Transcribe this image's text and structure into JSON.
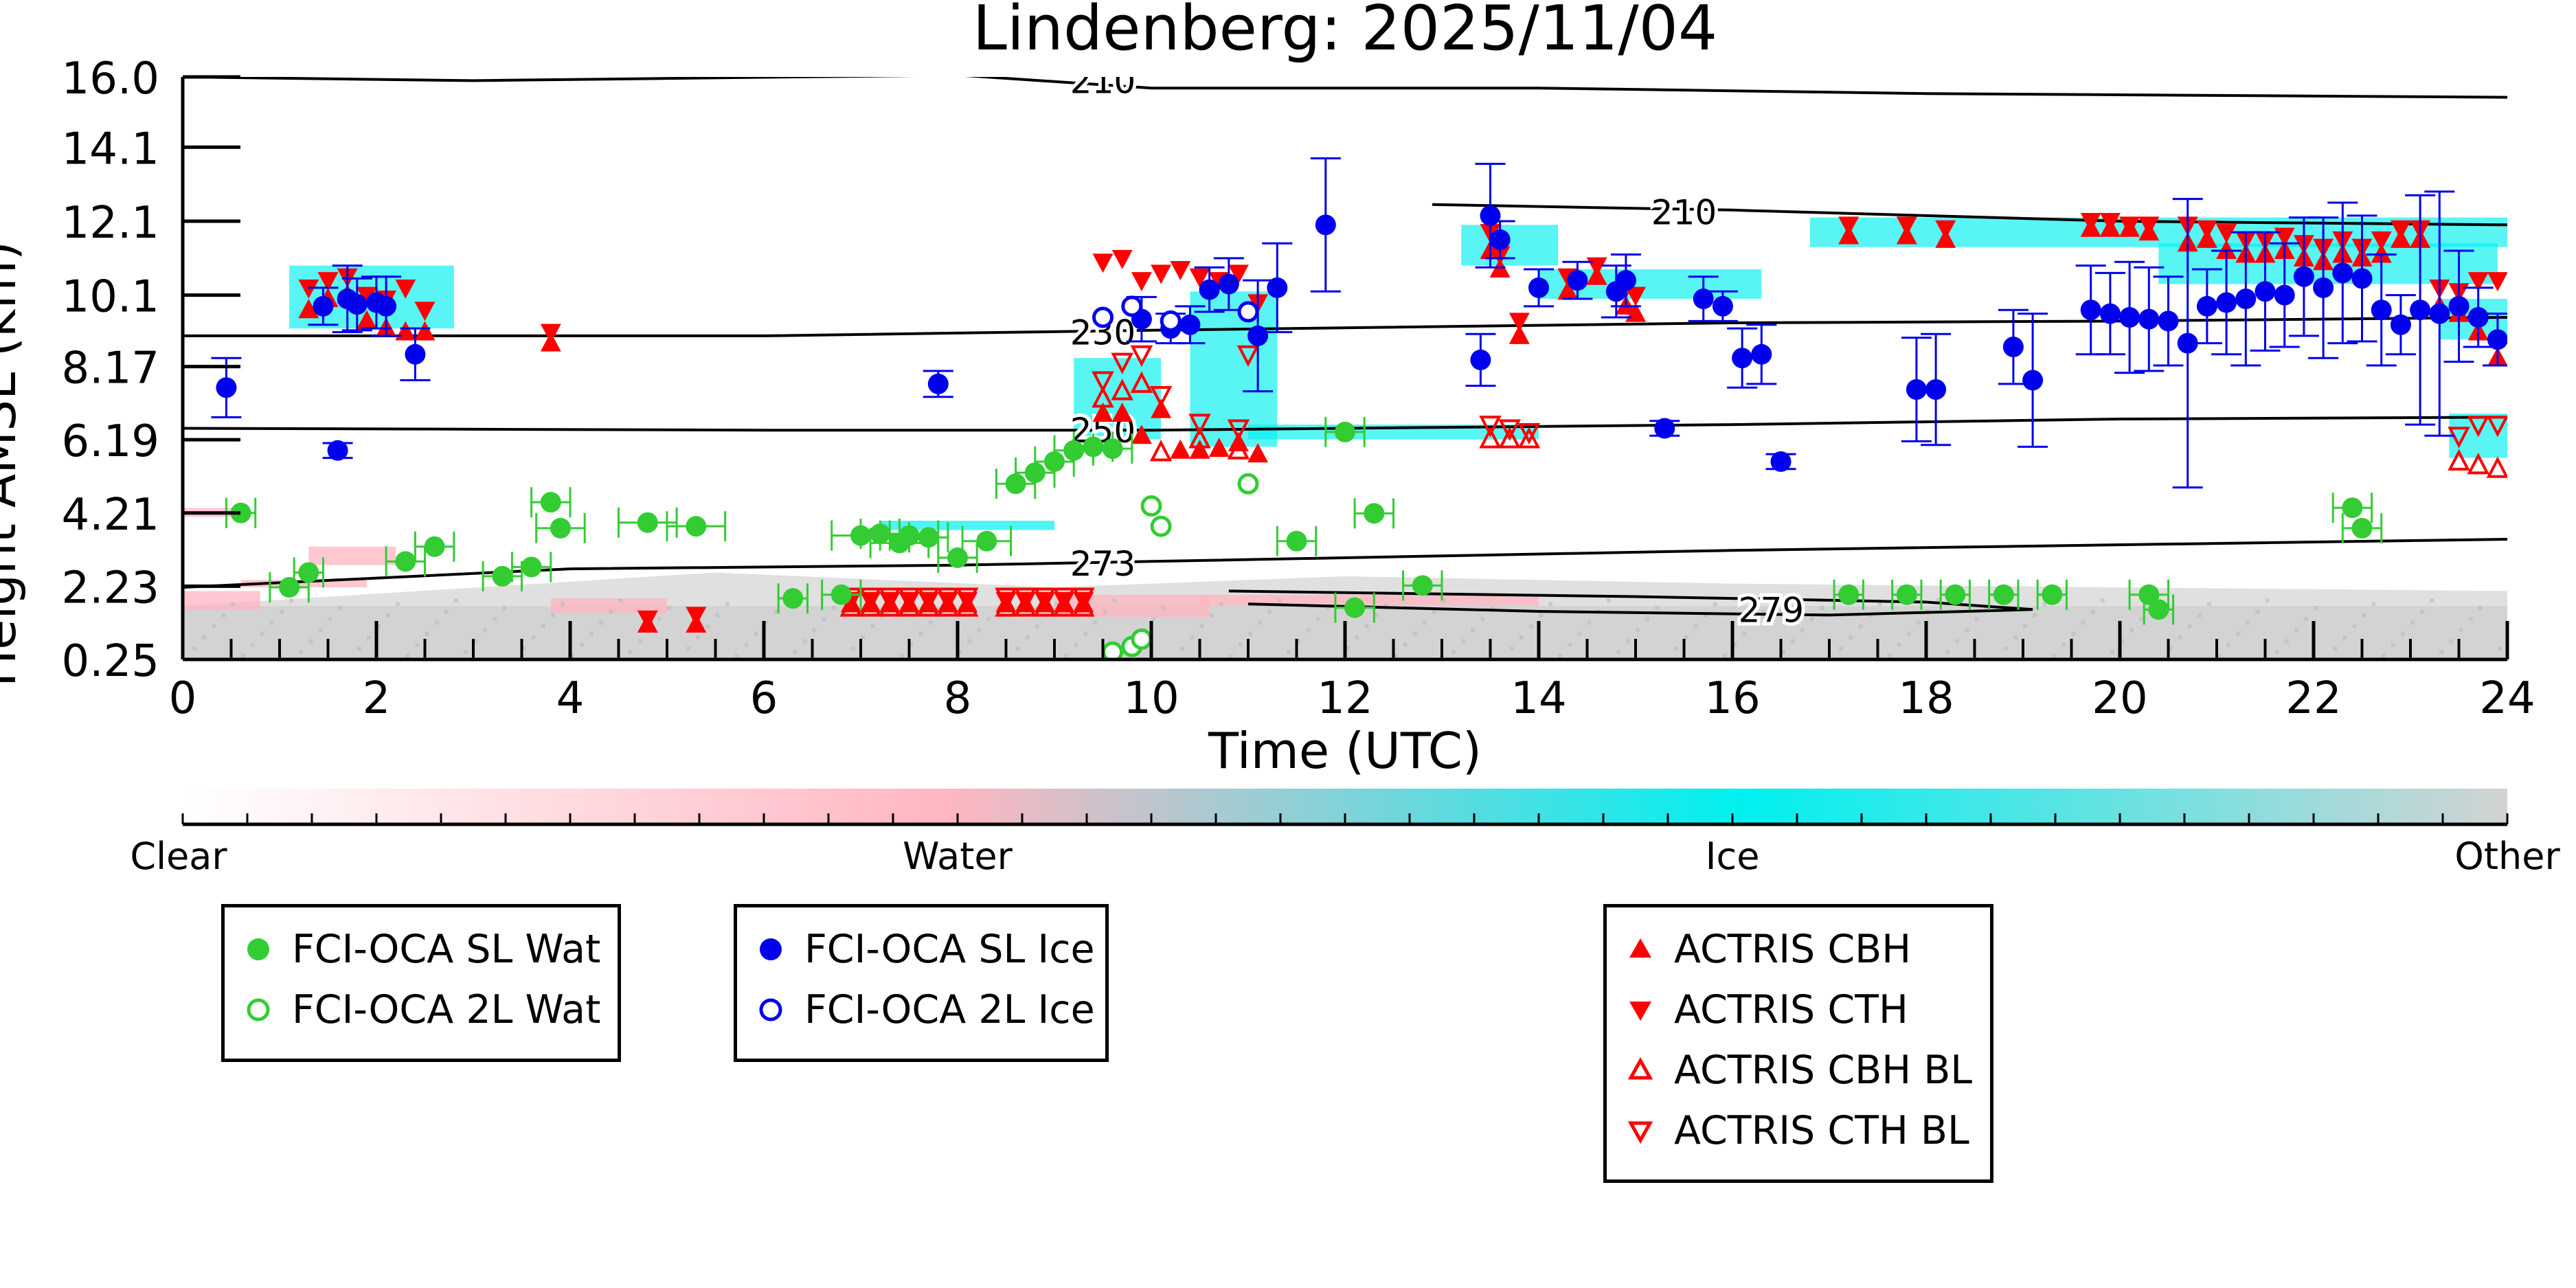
{
  "chart_data": {
    "type": "scatter",
    "title": "Lindenberg: 2025/11/04",
    "xlabel": "Time (UTC)",
    "ylabel": "Height AMSL (km)",
    "xlim": [
      0,
      24
    ],
    "ylim": [
      0.25,
      16.0
    ],
    "x_ticks": [
      "0",
      "2",
      "4",
      "6",
      "8",
      "10",
      "12",
      "14",
      "16",
      "18",
      "20",
      "22",
      "24"
    ],
    "y_ticks": [
      "16.0",
      "14.1",
      "12.1",
      "10.1",
      "8.17",
      "6.19",
      "4.21",
      "2.23",
      "0.25"
    ],
    "y_tick_values": [
      16.0,
      14.1,
      12.1,
      10.1,
      8.17,
      6.19,
      4.21,
      2.23,
      0.25
    ],
    "background": "cloud classification curtain (clear / water / ice / other)",
    "colorbar": {
      "labels": [
        "Clear",
        "Water",
        "Ice",
        "Other"
      ],
      "colors": [
        "#ffffff",
        "#ffb6c1",
        "#00f0f0",
        "#d3d3d3"
      ]
    },
    "temperature_contours": [
      {
        "label": "210",
        "points": [
          [
            0,
            16.0
          ],
          [
            3,
            15.9
          ],
          [
            8,
            16.05
          ],
          [
            10,
            15.7
          ],
          [
            14,
            15.7
          ],
          [
            18,
            15.55
          ],
          [
            24,
            15.45
          ]
        ]
      },
      {
        "label": "210",
        "points": [
          [
            12.9,
            12.55
          ],
          [
            16,
            12.4
          ],
          [
            20,
            12.1
          ],
          [
            24,
            12.0
          ]
        ]
      },
      {
        "label": "230",
        "points": [
          [
            0,
            9.0
          ],
          [
            6,
            9.0
          ],
          [
            10,
            9.15
          ],
          [
            16,
            9.35
          ],
          [
            20,
            9.4
          ],
          [
            24,
            9.5
          ]
        ]
      },
      {
        "label": "250",
        "points": [
          [
            0,
            6.5
          ],
          [
            6,
            6.45
          ],
          [
            10,
            6.45
          ],
          [
            16,
            6.6
          ],
          [
            20,
            6.75
          ],
          [
            24,
            6.8
          ]
        ]
      },
      {
        "label": "273",
        "points": [
          [
            0,
            2.2
          ],
          [
            4,
            2.7
          ],
          [
            8,
            2.8
          ],
          [
            10,
            2.9
          ],
          [
            16,
            3.2
          ],
          [
            24,
            3.5
          ]
        ]
      },
      {
        "label": "279",
        "points": [
          [
            10.8,
            2.1
          ],
          [
            15,
            1.95
          ],
          [
            18,
            1.8
          ],
          [
            19.1,
            1.6
          ],
          [
            17,
            1.45
          ],
          [
            14,
            1.55
          ],
          [
            11,
            1.75
          ]
        ]
      }
    ],
    "series": [
      {
        "name": "FCI-OCA SL Wat",
        "marker": "circle-filled",
        "color": "#33cc33",
        "x": [
          0.6,
          1.1,
          1.3,
          2.3,
          2.6,
          3.3,
          3.6,
          3.8,
          3.9,
          4.8,
          5.3,
          6.3,
          6.8,
          7.0,
          7.2,
          7.4,
          7.5,
          7.7,
          8.0,
          8.3,
          8.6,
          8.8,
          9.0,
          9.2,
          9.4,
          9.6,
          12.0,
          11.5,
          12.3,
          12.8,
          12.1,
          17.2,
          17.8,
          18.3,
          18.8,
          19.3,
          20.3,
          20.4,
          22.4,
          22.5
        ],
        "y": [
          4.21,
          2.2,
          2.6,
          2.9,
          3.3,
          2.5,
          2.75,
          4.5,
          3.8,
          3.95,
          3.85,
          1.9,
          2.0,
          3.6,
          3.65,
          3.4,
          3.6,
          3.55,
          3.0,
          3.45,
          5.0,
          5.3,
          5.6,
          5.9,
          6.0,
          5.95,
          6.4,
          3.45,
          4.2,
          2.25,
          1.65,
          2.0,
          2.0,
          2.0,
          2.0,
          2.0,
          2.0,
          1.6,
          4.35,
          3.8
        ],
        "xerr": [
          0.15,
          0.2,
          0.15,
          0.2,
          0.2,
          0.2,
          0.2,
          0.2,
          0.25,
          0.3,
          0.3,
          0.15,
          0.2,
          0.3,
          0.2,
          0.3,
          0.3,
          0.2,
          0.2,
          0.25,
          0.2,
          0.2,
          0.2,
          0.2,
          0.2,
          0.2,
          0.2,
          0.2,
          0.2,
          0.2,
          0.2,
          0.15,
          0.15,
          0.15,
          0.15,
          0.15,
          0.2,
          0.15,
          0.2,
          0.2
        ]
      },
      {
        "name": "FCI-OCA 2L Wat",
        "marker": "circle-open",
        "color": "#33cc33",
        "x": [
          9.6,
          9.8,
          9.9,
          10.0,
          10.1,
          11.0
        ],
        "y": [
          0.45,
          0.6,
          0.8,
          4.4,
          3.85,
          5.0
        ]
      },
      {
        "name": "FCI-OCA SL Ice",
        "marker": "circle-filled",
        "color": "#0000ee",
        "x": [
          0.45,
          1.45,
          1.6,
          1.7,
          1.8,
          2.0,
          2.1,
          2.4,
          7.8,
          9.9,
          10.2,
          10.4,
          10.6,
          10.8,
          11.1,
          11.3,
          11.8,
          13.4,
          13.5,
          13.6,
          14.0,
          14.4,
          14.8,
          14.9,
          15.3,
          15.7,
          15.9,
          16.1,
          16.3,
          16.5,
          17.9,
          18.1,
          18.9,
          19.1,
          19.7,
          19.9,
          20.1,
          20.3,
          20.5,
          20.7,
          20.9,
          21.1,
          21.3,
          21.5,
          21.7,
          21.9,
          22.1,
          22.3,
          22.5,
          22.7,
          22.9,
          23.1,
          23.3,
          23.5,
          23.7,
          23.9
        ],
        "y": [
          7.6,
          9.8,
          5.9,
          10.0,
          9.85,
          9.9,
          9.8,
          8.5,
          7.7,
          9.45,
          9.2,
          9.3,
          10.25,
          10.4,
          9.0,
          10.3,
          12.0,
          8.35,
          12.25,
          11.6,
          10.3,
          10.5,
          10.2,
          10.5,
          6.5,
          10.0,
          9.8,
          8.4,
          8.5,
          5.6,
          7.55,
          7.55,
          8.7,
          7.8,
          9.7,
          9.6,
          9.5,
          9.45,
          9.4,
          8.8,
          9.8,
          9.9,
          10.0,
          10.2,
          10.1,
          10.6,
          10.3,
          10.7,
          10.55,
          9.7,
          9.3,
          9.7,
          9.6,
          9.8,
          9.5,
          8.9
        ],
        "yerr": [
          0.8,
          0.5,
          0.2,
          0.9,
          0.7,
          0.7,
          0.8,
          0.7,
          0.35,
          0.6,
          0.4,
          0.5,
          0.6,
          0.7,
          1.5,
          1.2,
          1.8,
          0.7,
          1.4,
          0.5,
          0.5,
          0.5,
          0.7,
          0.7,
          0.2,
          0.6,
          0.4,
          0.8,
          0.8,
          0.2,
          1.4,
          1.5,
          1.0,
          1.8,
          1.2,
          1.1,
          1.5,
          1.4,
          1.2,
          3.9,
          1.0,
          1.4,
          1.8,
          1.6,
          1.4,
          1.6,
          1.9,
          1.9,
          1.7,
          1.5,
          0.8,
          3.1,
          3.3,
          1.5,
          0.8,
          0.7
        ]
      },
      {
        "name": "FCI-OCA 2L Ice",
        "marker": "circle-open",
        "color": "#0000ee",
        "x": [
          9.5,
          9.8,
          10.2,
          11.0
        ],
        "y": [
          9.5,
          9.8,
          9.4,
          9.65
        ]
      },
      {
        "name": "ACTRIS CBH",
        "marker": "triangle-up-filled",
        "color": "#ff0000",
        "x": [
          1.3,
          1.5,
          1.7,
          1.9,
          2.1,
          2.3,
          2.5,
          3.8,
          4.8,
          5.3,
          6.9,
          7.1,
          7.3,
          7.5,
          7.7,
          7.9,
          8.1,
          8.5,
          8.7,
          8.9,
          9.1,
          9.3,
          9.5,
          9.7,
          9.9,
          10.1,
          10.3,
          10.5,
          10.7,
          10.9,
          11.1,
          13.5,
          13.6,
          13.8,
          14.3,
          14.6,
          14.9,
          15.0,
          17.2,
          17.8,
          18.2,
          19.7,
          19.9,
          20.1,
          20.3,
          20.7,
          20.9,
          21.1,
          21.3,
          21.5,
          21.7,
          21.9,
          22.1,
          22.3,
          22.5,
          22.7,
          22.9,
          23.1,
          23.3,
          23.5,
          23.7,
          23.9
        ],
        "y": [
          9.7,
          10.0,
          10.1,
          9.4,
          9.2,
          9.1,
          9.1,
          8.8,
          1.2,
          1.2,
          1.75,
          1.75,
          1.75,
          1.75,
          1.75,
          1.75,
          1.75,
          1.75,
          1.75,
          1.75,
          1.75,
          1.75,
          6.9,
          6.9,
          6.3,
          7.0,
          5.9,
          5.9,
          5.95,
          6.1,
          5.8,
          11.3,
          10.8,
          9.0,
          10.2,
          10.6,
          9.8,
          9.6,
          11.7,
          11.7,
          11.6,
          11.9,
          11.9,
          11.9,
          11.8,
          11.5,
          11.6,
          11.3,
          11.2,
          11.2,
          11.3,
          11.1,
          11.0,
          11.2,
          11.1,
          11.2,
          11.6,
          11.6,
          9.8,
          9.6,
          9.1,
          8.4
        ]
      },
      {
        "name": "ACTRIS CTH",
        "marker": "triangle-down-filled",
        "color": "#ff0000",
        "x": [
          1.3,
          1.5,
          1.7,
          1.9,
          2.1,
          2.3,
          2.5,
          3.8,
          4.8,
          5.3,
          6.9,
          7.1,
          7.3,
          7.5,
          7.7,
          7.9,
          8.1,
          8.5,
          8.7,
          8.9,
          9.1,
          9.3,
          9.5,
          9.7,
          9.9,
          10.1,
          10.3,
          10.5,
          10.7,
          10.9,
          11.1,
          13.5,
          13.6,
          13.8,
          14.3,
          14.6,
          14.9,
          15.0,
          17.2,
          17.8,
          18.2,
          19.7,
          19.9,
          20.1,
          20.3,
          20.7,
          20.9,
          21.1,
          21.3,
          21.5,
          21.7,
          21.9,
          22.1,
          22.3,
          22.5,
          22.7,
          22.9,
          23.1,
          23.3,
          23.5,
          23.7,
          23.9
        ],
        "y": [
          10.3,
          10.5,
          10.6,
          10.1,
          10.0,
          10.3,
          9.7,
          9.1,
          1.35,
          1.45,
          1.85,
          1.85,
          1.85,
          1.85,
          1.85,
          1.85,
          1.85,
          1.85,
          1.85,
          1.85,
          1.85,
          1.85,
          11.0,
          11.1,
          10.5,
          10.7,
          10.8,
          10.6,
          10.5,
          10.7,
          9.9,
          11.8,
          11.2,
          9.4,
          10.6,
          10.9,
          10.3,
          10.1,
          12.0,
          12.0,
          11.9,
          12.1,
          12.1,
          12.0,
          12.0,
          12.0,
          11.9,
          11.8,
          11.6,
          11.6,
          11.7,
          11.5,
          11.4,
          11.6,
          11.4,
          11.6,
          11.9,
          11.9,
          10.3,
          10.2,
          10.5,
          10.5
        ]
      },
      {
        "name": "ACTRIS CBH BL",
        "marker": "triangle-up-open",
        "color": "#ff0000",
        "x": [
          6.9,
          7.1,
          7.3,
          7.5,
          7.7,
          7.9,
          8.1,
          8.5,
          8.7,
          8.9,
          9.1,
          9.3,
          9.5,
          9.7,
          9.9,
          10.1,
          10.5,
          10.9,
          13.5,
          13.7,
          13.9,
          23.5,
          23.7,
          23.9
        ],
        "y": [
          1.65,
          1.65,
          1.65,
          1.65,
          1.65,
          1.65,
          1.65,
          1.65,
          1.65,
          1.65,
          1.65,
          1.65,
          7.3,
          7.5,
          7.7,
          5.85,
          6.2,
          5.9,
          6.2,
          6.2,
          6.2,
          5.6,
          5.5,
          5.4
        ],
        "x2": [],
        "y2": []
      },
      {
        "name": "ACTRIS CTH BL",
        "marker": "triangle-down-open",
        "color": "#ff0000",
        "x": [
          6.9,
          7.1,
          7.3,
          7.5,
          7.7,
          7.9,
          8.1,
          8.5,
          8.7,
          8.9,
          9.1,
          9.3,
          9.5,
          9.7,
          9.9,
          10.1,
          10.5,
          10.9,
          11.0,
          13.5,
          13.7,
          13.9,
          23.5,
          23.7,
          23.9
        ],
        "y": [
          1.95,
          1.95,
          1.95,
          1.95,
          1.95,
          1.95,
          1.95,
          1.95,
          1.95,
          1.95,
          1.95,
          1.95,
          7.8,
          8.3,
          8.5,
          7.4,
          6.65,
          6.5,
          8.5,
          6.6,
          6.5,
          6.4,
          6.3,
          6.6,
          6.6
        ]
      }
    ],
    "legend": [
      {
        "label": "FCI-OCA SL Wat",
        "marker": "circle-filled",
        "color": "#33cc33"
      },
      {
        "label": "FCI-OCA 2L Wat",
        "marker": "circle-open",
        "color": "#33cc33"
      },
      {
        "label": "FCI-OCA SL Ice",
        "marker": "circle-filled",
        "color": "#0000ee"
      },
      {
        "label": "FCI-OCA 2L Ice",
        "marker": "circle-open",
        "color": "#0000ee"
      },
      {
        "label": "ACTRIS CBH",
        "marker": "triangle-up-filled",
        "color": "#ff0000"
      },
      {
        "label": "ACTRIS CTH",
        "marker": "triangle-down-filled",
        "color": "#ff0000"
      },
      {
        "label": "ACTRIS CBH BL",
        "marker": "triangle-up-open",
        "color": "#ff0000"
      },
      {
        "label": "ACTRIS CTH BL",
        "marker": "triangle-down-open",
        "color": "#ff0000"
      }
    ]
  }
}
